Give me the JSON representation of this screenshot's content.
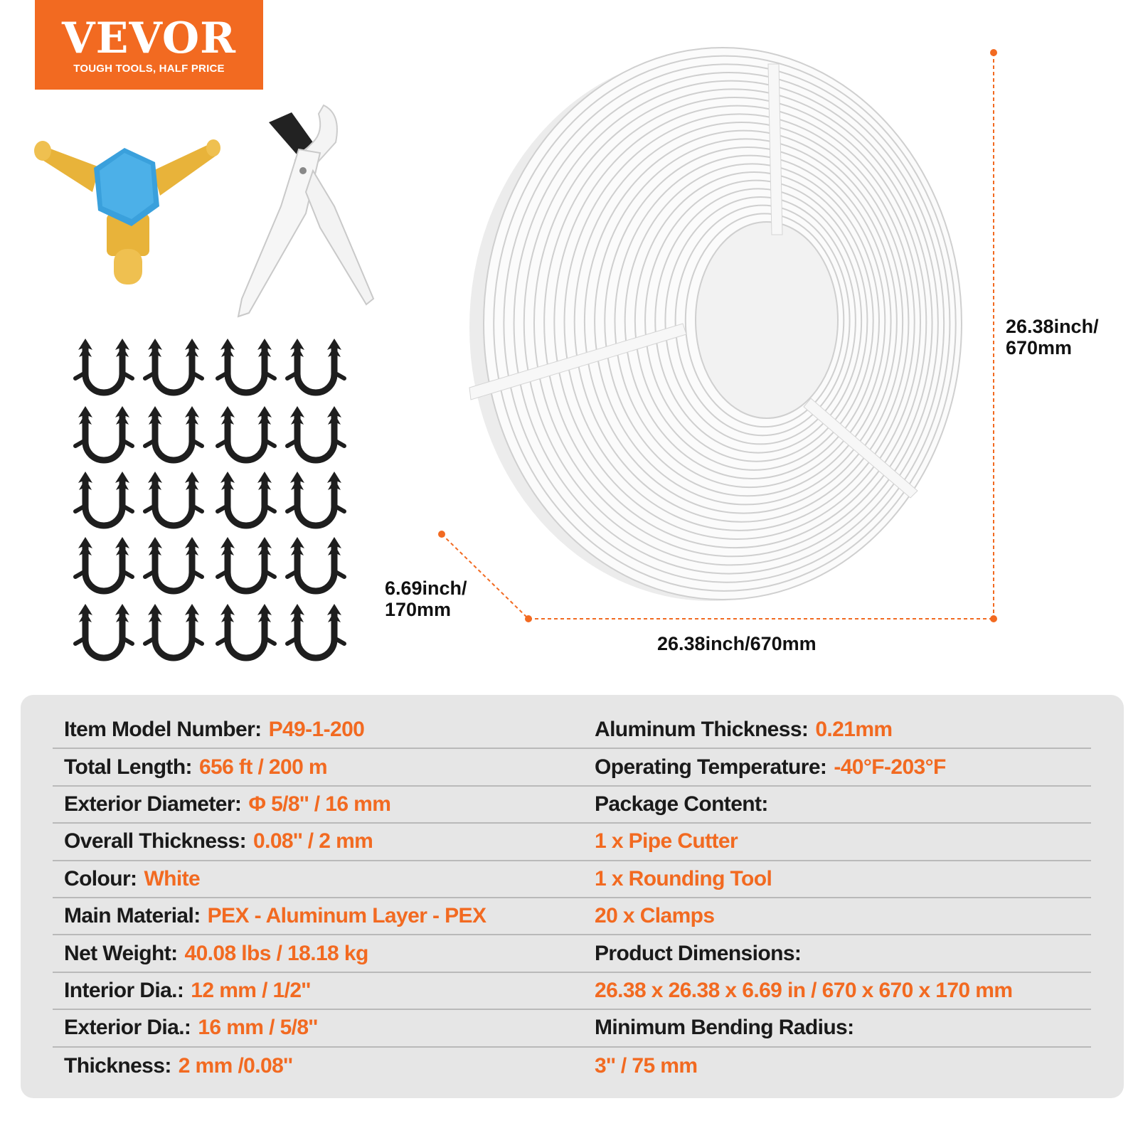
{
  "brand": {
    "name": "VEVOR",
    "tagline": "TOUGH TOOLS, HALF PRICE",
    "color": "#F26A21"
  },
  "dimensions": {
    "height": [
      "26.38inch/",
      "670mm"
    ],
    "width": "26.38inch/670mm",
    "depth": [
      "6.69inch/",
      "170mm"
    ]
  },
  "products": {
    "coil": "pex-pipe-coil",
    "rounding_tool": "rounding-tool",
    "pipe_cutter": "pipe-cutter",
    "clamp_count": 20
  },
  "specs": {
    "left": [
      {
        "label": "Item Model Number:",
        "value": "P49-1-200"
      },
      {
        "label": "Total Length:",
        "value": "656 ft / 200 m"
      },
      {
        "label": "Exterior Diameter:",
        "value": "Φ 5/8'' / 16 mm"
      },
      {
        "label": "Overall Thickness:",
        "value": "0.08'' / 2 mm"
      },
      {
        "label": "Colour:",
        "value": "White"
      },
      {
        "label": "Main Material:",
        "value": "PEX - Aluminum Layer - PEX"
      },
      {
        "label": "Net Weight:",
        "value": "40.08 lbs / 18.18 kg"
      },
      {
        "label": "Interior Dia.:",
        "value": "12 mm / 1/2''"
      },
      {
        "label": "Exterior Dia.:",
        "value": "16 mm / 5/8''"
      },
      {
        "label": "Thickness:",
        "value": "2 mm /0.08''"
      }
    ],
    "right": [
      {
        "label": "Aluminum Thickness:",
        "value": "0.21mm"
      },
      {
        "label": "Operating Temperature:",
        "value": "-40°F-203°F"
      },
      {
        "label": "Package Content:",
        "value": ""
      },
      {
        "label": "",
        "value": "1 x Pipe Cutter"
      },
      {
        "label": "",
        "value": "1 x Rounding Tool"
      },
      {
        "label": "",
        "value": "20 x Clamps"
      },
      {
        "label": "Product Dimensions:",
        "value": ""
      },
      {
        "label": "",
        "value": "26.38 x 26.38 x 6.69 in / 670 x 670 x 170 mm"
      },
      {
        "label": "Minimum Bending Radius:",
        "value": ""
      },
      {
        "label": "",
        "value": "3'' / 75 mm"
      }
    ]
  }
}
